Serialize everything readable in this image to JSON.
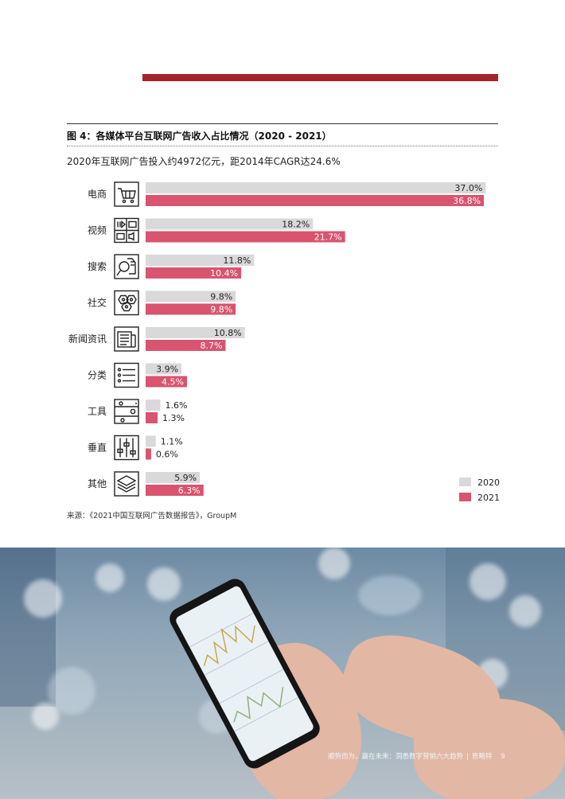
{
  "figure_title": "图 4：各媒体平台互联网广告收入占比情况（2020 - 2021）",
  "source": "来源：《2021中国互联网广告数据报告》，GroupM",
  "footer": {
    "text": "顺势而为，赢在未来：洞悉数字营销六大趋势",
    "brand": "思略特",
    "page_number": "9"
  },
  "colors": {
    "accent_bar": "#a3252a",
    "series_2020": "#d9d9d9",
    "series_2021": "#d9546e"
  },
  "chart_data": {
    "type": "bar",
    "orientation": "horizontal",
    "subtitle": "2020年互联网广告投入约4972亿元，距2014年CAGR达24.6%",
    "categories": [
      "电商",
      "视频",
      "搜索",
      "社交",
      "新闻资讯",
      "分类",
      "工具",
      "垂直",
      "其他"
    ],
    "category_icons": [
      "shopping-cart-icon",
      "media-icon",
      "search-hand-icon",
      "social-network-icon",
      "newspaper-icon",
      "list-icon",
      "tools-icon",
      "sliders-icon",
      "layers-icon"
    ],
    "series": [
      {
        "name": "2020",
        "values": [
          37.0,
          18.2,
          11.8,
          9.8,
          10.8,
          3.9,
          1.6,
          1.1,
          5.9
        ],
        "labels": [
          "37.0%",
          "18.2%",
          "11.8%",
          "9.8%",
          "10.8%",
          "3.9%",
          "1.6%",
          "1.1%",
          "5.9%"
        ],
        "color": "#d9d9d9"
      },
      {
        "name": "2021",
        "values": [
          36.8,
          21.7,
          10.4,
          9.8,
          8.7,
          4.5,
          1.3,
          0.6,
          6.3
        ],
        "labels": [
          "36.8%",
          "21.7%",
          "10.4%",
          "9.8%",
          "8.7%",
          "4.5%",
          "1.3%",
          "0.6%",
          "6.3%"
        ],
        "color": "#d9546e"
      }
    ],
    "unit": "%",
    "legend_position": "bottom-right",
    "grid": false
  }
}
